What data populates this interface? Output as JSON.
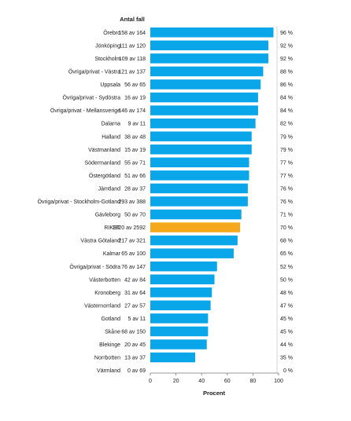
{
  "chart_data": {
    "type": "bar",
    "orientation": "horizontal",
    "column_header": "Antal fall",
    "xlabel": "Procent",
    "xlim": [
      0,
      100
    ],
    "xticks": [
      0,
      20,
      40,
      60,
      80,
      100
    ],
    "grid": false,
    "colors": {
      "default": "#0aa6ea",
      "highlight": "#f5a81c",
      "axis": "#777777"
    },
    "highlight_category": "RIKET",
    "rows": [
      {
        "category": "Örebro",
        "count": "158 av 164",
        "value": 96,
        "value_label": "96 %"
      },
      {
        "category": "Jönköping",
        "count": "111 av 120",
        "value": 92,
        "value_label": "92 %"
      },
      {
        "category": "Stockholm",
        "count": "109 av 118",
        "value": 92,
        "value_label": "92 %"
      },
      {
        "category": "Övriga/privat - Västra",
        "count": "121 av 137",
        "value": 88,
        "value_label": "88 %"
      },
      {
        "category": "Uppsala",
        "count": "56 av 65",
        "value": 86,
        "value_label": "86 %"
      },
      {
        "category": "Övriga/privat - Sydöstra",
        "count": "16 av 19",
        "value": 84,
        "value_label": "84 %"
      },
      {
        "category": "Övriga/privat - Mellansverige",
        "count": "146 av 174",
        "value": 84,
        "value_label": "84 %"
      },
      {
        "category": "Dalarna",
        "count": "9 av 11",
        "value": 82,
        "value_label": "82 %"
      },
      {
        "category": "Halland",
        "count": "38 av 48",
        "value": 79,
        "value_label": "79 %"
      },
      {
        "category": "Västmanland",
        "count": "15 av 19",
        "value": 79,
        "value_label": "79 %"
      },
      {
        "category": "Södermanland",
        "count": "55 av 71",
        "value": 77,
        "value_label": "77 %"
      },
      {
        "category": "Östergötland",
        "count": "51 av 66",
        "value": 77,
        "value_label": "77 %"
      },
      {
        "category": "Jämtland",
        "count": "28 av 37",
        "value": 76,
        "value_label": "76 %"
      },
      {
        "category": "Övriga/privat - Stockholm-Gotland",
        "count": "293 av 388",
        "value": 76,
        "value_label": "76 %"
      },
      {
        "category": "Gävleborg",
        "count": "50 av 70",
        "value": 71,
        "value_label": "71 %"
      },
      {
        "category": "RIKET",
        "count": "1820 av 2592",
        "value": 70,
        "value_label": "70 %"
      },
      {
        "category": "Västra Götaland",
        "count": "217 av 321",
        "value": 68,
        "value_label": "68 %"
      },
      {
        "category": "Kalmar",
        "count": "65 av 100",
        "value": 65,
        "value_label": "65 %"
      },
      {
        "category": "Övriga/privat - Södra",
        "count": "76 av 147",
        "value": 52,
        "value_label": "52 %"
      },
      {
        "category": "Västerbotten",
        "count": "42 av 84",
        "value": 50,
        "value_label": "50 %"
      },
      {
        "category": "Kronoberg",
        "count": "31 av 64",
        "value": 48,
        "value_label": "48 %"
      },
      {
        "category": "Västernorrland",
        "count": "27 av 57",
        "value": 47,
        "value_label": "47 %"
      },
      {
        "category": "Gotland",
        "count": "5 av 11",
        "value": 45,
        "value_label": "45 %"
      },
      {
        "category": "Skåne",
        "count": "68 av 150",
        "value": 45,
        "value_label": "45 %"
      },
      {
        "category": "Blekinge",
        "count": "20 av 45",
        "value": 44,
        "value_label": "44 %"
      },
      {
        "category": "Norrbotten",
        "count": "13 av 37",
        "value": 35,
        "value_label": "35 %"
      },
      {
        "category": "Värmland",
        "count": "0 av 69",
        "value": 0,
        "value_label": "0 %"
      }
    ]
  }
}
